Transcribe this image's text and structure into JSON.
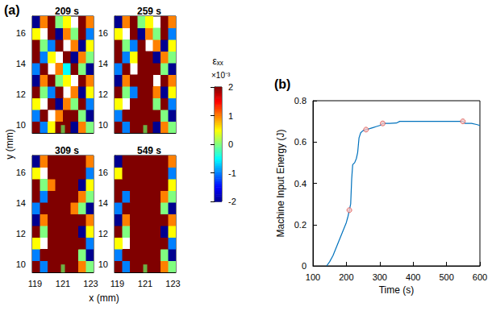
{
  "chart_data": [
    {
      "type": "heatmap",
      "panel": "(a)",
      "xlabel": "x (mm)",
      "ylabel": "y (mm)",
      "xlim": [
        118.8,
        123.2
      ],
      "xticks": [
        119,
        121,
        123
      ],
      "ylim": [
        9.5,
        17.1
      ],
      "yticks": [
        10,
        12,
        14,
        16
      ],
      "x_edges": [
        118.8,
        119.35,
        119.9,
        120.45,
        121,
        121.55,
        122.1,
        122.65,
        123.2
      ],
      "y_edges": [
        9.5,
        10.26,
        11.02,
        11.78,
        12.54,
        13.3,
        14.06,
        14.82,
        15.58,
        16.34,
        17.1
      ],
      "maps": [
        {
          "title": "209 s",
          "z": [
            [
              2,
              -1,
              0.5,
              2,
              2,
              -2,
              1,
              0
            ],
            [
              -1,
              2,
              null,
              1,
              2,
              2,
              0,
              -2
            ],
            [
              0.5,
              null,
              2,
              -2,
              1,
              0,
              2,
              -1
            ],
            [
              2,
              0,
              -1,
              2,
              null,
              1,
              -2,
              0.5
            ],
            [
              -2,
              1,
              2,
              0,
              0.5,
              null,
              2,
              1
            ],
            [
              -1,
              2,
              null,
              1,
              -0.5,
              2,
              0,
              -2
            ],
            [
              2,
              -1,
              0.5,
              null,
              2,
              -2,
              1,
              0
            ],
            [
              2,
              0,
              -1,
              2,
              null,
              1,
              -2,
              0.5
            ],
            [
              0.5,
              null,
              2,
              -2,
              1,
              0,
              2,
              -1
            ],
            [
              -2,
              1,
              2,
              0,
              0.5,
              null,
              2,
              1
            ]
          ]
        },
        {
          "title": "259 s",
          "z": [
            [
              2,
              -1,
              2,
              2,
              2,
              -2,
              1,
              0
            ],
            [
              -1,
              2,
              2,
              2,
              2,
              2,
              0,
              -2
            ],
            [
              0.5,
              null,
              2,
              2,
              2,
              0,
              2,
              -1
            ],
            [
              2,
              0,
              -1,
              2,
              2,
              1,
              -2,
              0.5
            ],
            [
              -2,
              1,
              2,
              2,
              2,
              null,
              2,
              1
            ],
            [
              -1,
              2,
              null,
              2,
              2,
              2,
              0,
              -2
            ],
            [
              2,
              -1,
              0.5,
              2,
              2,
              -2,
              1,
              0
            ],
            [
              2,
              0,
              -1,
              2,
              null,
              1,
              -2,
              0.5
            ],
            [
              0.5,
              null,
              2,
              -2,
              1,
              0,
              2,
              -1
            ],
            [
              -2,
              1,
              2,
              0,
              0.5,
              null,
              2,
              1
            ]
          ]
        },
        {
          "title": "309 s",
          "z": [
            [
              2,
              -1,
              2,
              2,
              2,
              2,
              1,
              0
            ],
            [
              -1,
              2,
              2,
              2,
              2,
              2,
              0,
              -2
            ],
            [
              0.5,
              null,
              2,
              2,
              2,
              2,
              2,
              -1
            ],
            [
              2,
              0,
              2,
              2,
              2,
              2,
              -2,
              0.5
            ],
            [
              -2,
              1,
              2,
              2,
              2,
              2,
              2,
              1
            ],
            [
              -1,
              2,
              2,
              2,
              2,
              1,
              0,
              -2
            ],
            [
              2,
              -1,
              2,
              2,
              2,
              2,
              1,
              0
            ],
            [
              2,
              0,
              1,
              2,
              2,
              2,
              -2,
              0.5
            ],
            [
              0.5,
              null,
              2,
              2,
              2,
              2,
              2,
              -1
            ],
            [
              -2,
              1,
              2,
              2,
              2,
              2,
              2,
              1
            ]
          ]
        },
        {
          "title": "549 s",
          "z": [
            [
              2,
              -1,
              2,
              2,
              2,
              2,
              1,
              0
            ],
            [
              -1,
              2,
              2,
              2,
              2,
              2,
              0,
              -2
            ],
            [
              0.5,
              null,
              2,
              2,
              2,
              2,
              2,
              -1
            ],
            [
              2,
              0,
              2,
              2,
              2,
              2,
              -2,
              0.5
            ],
            [
              -2,
              1,
              2,
              2,
              2,
              2,
              2,
              1
            ],
            [
              -1,
              2,
              2,
              2,
              2,
              2,
              0,
              -2
            ],
            [
              2,
              -1,
              2,
              2,
              2,
              2,
              1,
              0
            ],
            [
              2,
              2,
              2,
              2,
              2,
              2,
              2,
              0.5
            ],
            [
              0.5,
              2,
              2,
              2,
              2,
              2,
              2,
              -1
            ],
            [
              -2,
              2,
              2,
              2,
              2,
              2,
              2,
              1
            ]
          ]
        }
      ],
      "colorbar": {
        "label": "εₓₓ",
        "multiplier": "×10⁻³",
        "range": [
          -2,
          2
        ],
        "ticks": [
          -2,
          -1,
          0,
          1,
          2
        ]
      },
      "notch": {
        "x": 121,
        "y": 9.75,
        "color": "#66dd55"
      }
    },
    {
      "type": "line",
      "panel": "(b)",
      "xlabel": "Time (s)",
      "ylabel": "Machine Input Energy (J)",
      "xlim": [
        100,
        600
      ],
      "xticks": [
        100,
        200,
        300,
        400,
        500,
        600
      ],
      "ylim": [
        0,
        0.8
      ],
      "yticks": [
        0,
        0.2,
        0.4,
        0.6,
        0.8
      ],
      "color": "#0072bd",
      "x": [
        141,
        150,
        160,
        170,
        180,
        190,
        200,
        205,
        209,
        213,
        216,
        219,
        225,
        230,
        234,
        238,
        243,
        250,
        259,
        270,
        280,
        290,
        300,
        305,
        309,
        330,
        350,
        360,
        400,
        500,
        549,
        555,
        575,
        590,
        600
      ],
      "values": [
        0,
        0.02,
        0.05,
        0.09,
        0.13,
        0.17,
        0.21,
        0.24,
        0.27,
        0.3,
        0.42,
        0.49,
        0.5,
        0.52,
        0.55,
        0.62,
        0.645,
        0.655,
        0.66,
        0.665,
        0.67,
        0.675,
        0.68,
        0.685,
        0.69,
        0.69,
        0.692,
        0.7,
        0.7,
        0.7,
        0.7,
        0.69,
        0.69,
        0.685,
        0.68
      ],
      "points": {
        "x": [
          209,
          259,
          309,
          549
        ],
        "values": [
          0.27,
          0.66,
          0.69,
          0.7
        ],
        "color": "#d9534f",
        "marker": "circle"
      }
    }
  ]
}
